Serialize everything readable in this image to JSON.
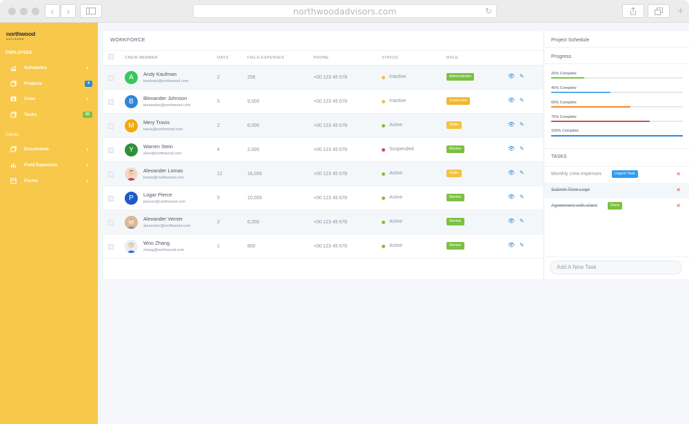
{
  "browser": {
    "url": "northwoodadvisors.com"
  },
  "sidebar": {
    "logo": "northwood",
    "logo_sub": "ADVISORS",
    "section_employees": "EMPLOYEES",
    "section_clients": "Clients",
    "items": [
      {
        "label": "Schedules",
        "icon": "speaker-icon",
        "chevron": "‹"
      },
      {
        "label": "Projects",
        "icon": "projects-icon",
        "badge": "4",
        "badge_color": "#2f86d9"
      },
      {
        "label": "Crew",
        "icon": "id-card-icon",
        "chevron": "‹"
      },
      {
        "label": "Tasks",
        "icon": "tasks-icon",
        "badge": "20",
        "badge_color": "#7ac13f"
      },
      {
        "label": "Documents",
        "icon": "documents-icon",
        "chevron": "‹"
      },
      {
        "label": "Field Expenses",
        "icon": "chart-icon",
        "chevron": "‹"
      },
      {
        "label": "Forms",
        "icon": "forms-icon",
        "chevron": "‹"
      }
    ]
  },
  "workforce": {
    "title": "WORKFORCE",
    "columns": {
      "member": "CREW MEMBER",
      "days": "DAYS",
      "expenses": "FIELD EXPENSES",
      "phone": "PHONE",
      "status": "STATUS",
      "role": "ROLE"
    },
    "rows": [
      {
        "initial": "A",
        "avatar_color": "#3cc65b",
        "name": "Andy Kaufman",
        "email": "kaufman@northwood.com",
        "days": "2",
        "expenses": "256",
        "phone": "+00 123 45 678",
        "status": "Inactive",
        "status_color": "#f3c23b",
        "role": "Administrator",
        "role_color": "#7ac13f"
      },
      {
        "initial": "B",
        "avatar_color": "#2f86d9",
        "name": "Blexander Johnson",
        "email": "blexander@northwood.com",
        "days": "5",
        "expenses": "9,500",
        "phone": "+00 123 45 678",
        "status": "Inactive",
        "status_color": "#f3c23b",
        "role": "Subscriber",
        "role_color": "#f3b62f"
      },
      {
        "initial": "M",
        "avatar_color": "#f3a80f",
        "name": "Mery Travis",
        "email": "travis@northwood.com",
        "days": "2",
        "expenses": "6,000",
        "phone": "+00 123 45 678",
        "status": "Active",
        "status_color": "#7ac13f",
        "role": "Seller",
        "role_color": "#f3c23b"
      },
      {
        "initial": "Y",
        "avatar_color": "#2f8f3c",
        "name": "Warren Stein",
        "email": "stein@northwood.com",
        "days": "4",
        "expenses": "2,000",
        "phone": "+00 123 45 678",
        "status": "Suspended",
        "status_color": "#e0474c",
        "role": "Worker",
        "role_color": "#7ac13f"
      },
      {
        "initial": "",
        "avatar_color": "#f2d7c9",
        "name": "Alexander Lomas",
        "email": "lomas@northwood.com",
        "days": "12",
        "expenses": "16,000",
        "phone": "+00 123 45 678",
        "status": "Active",
        "status_color": "#7ac13f",
        "role": "Seller",
        "role_color": "#f3c23b"
      },
      {
        "initial": "P",
        "avatar_color": "#1f5bc7",
        "name": "Logar Pierce",
        "email": "piercer@northwood.com",
        "days": "5",
        "expenses": "10,000",
        "phone": "+00 123 45 678",
        "status": "Active",
        "status_color": "#7ac13f",
        "role": "Worker",
        "role_color": "#7ac13f"
      },
      {
        "initial": "",
        "avatar_color": "#c9a27e",
        "name": "Alexander Verner",
        "email": "alexander@northwood.com",
        "days": "2",
        "expenses": "6,000",
        "phone": "+00 123 45 678",
        "status": "Active",
        "status_color": "#7ac13f",
        "role": "Worker",
        "role_color": "#7ac13f"
      },
      {
        "initial": "",
        "avatar_color": "#e7eef7",
        "name": "Woo Zhang",
        "email": "zhang@northwood.com",
        "days": "1",
        "expenses": "800",
        "phone": "+00 123 45 678",
        "status": "Active",
        "status_color": "#7ac13f",
        "role": "Worker",
        "role_color": "#7ac13f"
      }
    ]
  },
  "schedule": {
    "title": "Project Schedule",
    "progress_title": "Progress",
    "progress": [
      {
        "label": "25% Complete",
        "value": 25,
        "color": "#7ac13f"
      },
      {
        "label": "45% Complete",
        "value": 45,
        "color": "#5aa9e6"
      },
      {
        "label": "60% Complete",
        "value": 60,
        "color": "#f08a24"
      },
      {
        "label": "75% Complete",
        "value": 75,
        "color": "#e0474c"
      },
      {
        "label": "100% Complete",
        "value": 100,
        "color": "#2f86d9"
      }
    ]
  },
  "tasks": {
    "title": "TASKS",
    "items": [
      {
        "text": "Monthly crew expenses",
        "done": false,
        "badge": "Urgent Task",
        "badge_color": "#2f9cf0"
      },
      {
        "text": "Submit Time Logs",
        "done": true,
        "badge": "",
        "badge_color": ""
      },
      {
        "text": "Agreement with client",
        "done": true,
        "badge": "Done",
        "badge_color": "#7ac13f"
      }
    ],
    "new_placeholder": "Add A New Task"
  }
}
